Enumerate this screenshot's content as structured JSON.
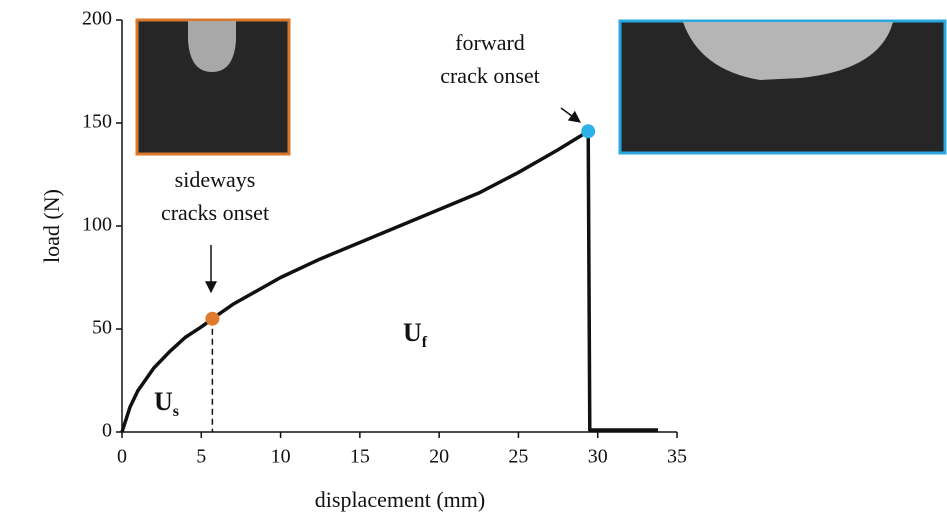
{
  "chart_data": {
    "type": "line",
    "xlabel": "displacement (mm)",
    "ylabel": "load (N)",
    "xlim": [
      0,
      35
    ],
    "xticks": [
      0,
      5,
      10,
      15,
      20,
      25,
      30,
      35
    ],
    "ylim": [
      0,
      200
    ],
    "yticks": [
      0,
      50,
      100,
      150,
      200
    ],
    "x": [
      0,
      0.5,
      1,
      2,
      3,
      4,
      5,
      5.7,
      7,
      10,
      12.5,
      15,
      17.5,
      20,
      22.5,
      25,
      27.5,
      29.4,
      29.5,
      33.8
    ],
    "values": [
      0,
      12,
      20,
      31,
      39,
      46,
      51,
      55,
      62,
      75,
      84,
      92,
      100,
      108,
      116,
      126,
      137,
      146,
      1,
      1
    ],
    "color": "#111111",
    "markers": [
      {
        "x": 5.7,
        "y": 55,
        "color": "#e07a2c"
      },
      {
        "x": 29.4,
        "y": 146,
        "color": "#2fb0e8"
      }
    ],
    "annotations": [
      {
        "lines": [
          "forward",
          "crack onset"
        ]
      },
      {
        "lines": [
          "sideways",
          "cracks onset"
        ]
      }
    ],
    "area_labels": [
      {
        "text": "U",
        "sub": "s"
      },
      {
        "text": "U",
        "sub": "f"
      }
    ]
  }
}
